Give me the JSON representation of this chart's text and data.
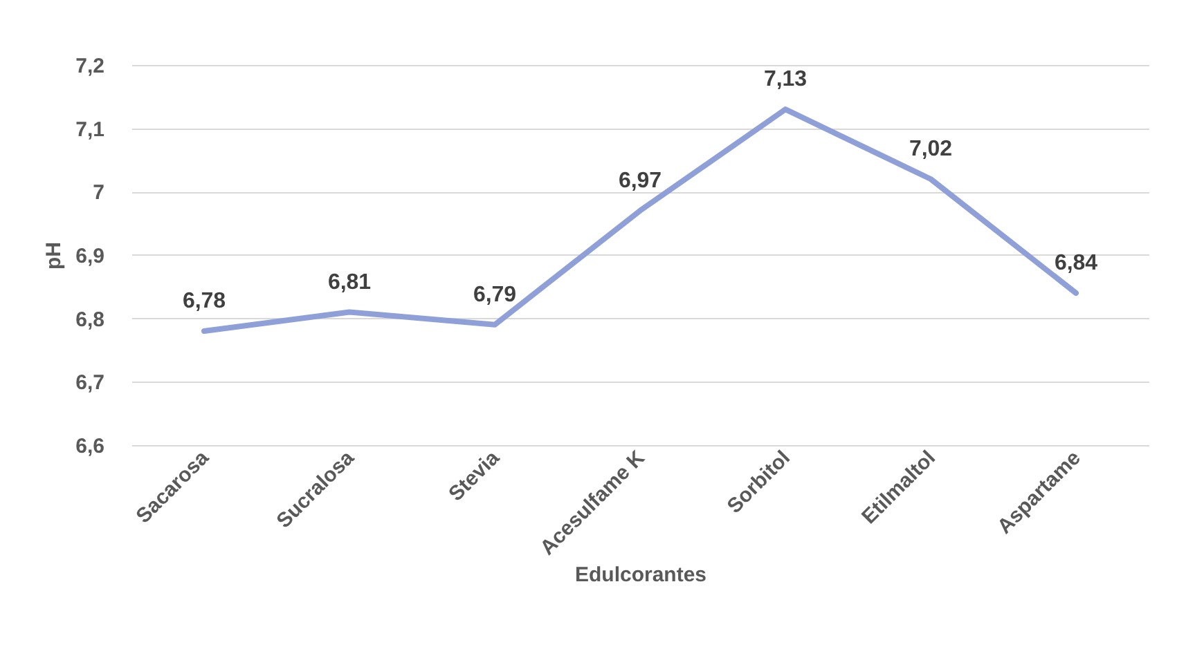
{
  "chart_data": {
    "type": "line",
    "xlabel": "Edulcorantes",
    "ylabel": "pH",
    "categories": [
      "Sacarosa",
      "Sucralosa",
      "Stevia",
      "Acesulfame K",
      "Sorbitol",
      "Etilmaltol",
      "Aspartame"
    ],
    "series": [
      {
        "color": "#8fa0d8",
        "values": [
          6.78,
          6.81,
          6.79,
          6.97,
          7.13,
          7.02,
          6.84
        ],
        "value_labels": [
          "6,78",
          "6,81",
          "6,79",
          "6,97",
          "7,13",
          "7,02",
          "6,84"
        ]
      }
    ],
    "ylim": [
      6.6,
      7.2
    ],
    "yticks": [
      {
        "value": 6.6,
        "label": "6,6"
      },
      {
        "value": 6.7,
        "label": "6,7"
      },
      {
        "value": 6.8,
        "label": "6,8"
      },
      {
        "value": 6.9,
        "label": "6,9"
      },
      {
        "value": 7,
        "label": "7"
      },
      {
        "value": 7.1,
        "label": "7,1"
      },
      {
        "value": 7.2,
        "label": "7,2"
      }
    ],
    "grid": "y",
    "marker": "none",
    "line_style": "solid"
  }
}
